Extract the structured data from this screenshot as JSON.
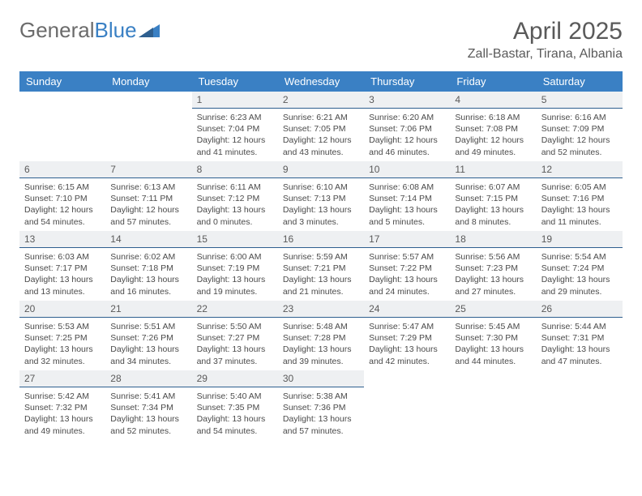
{
  "logo": {
    "text1": "General",
    "text2": "Blue"
  },
  "title": "April 2025",
  "location": "Zall-Bastar, Tirana, Albania",
  "header_bg": "#3a80c4",
  "daynum_bg": "#eef0f2",
  "border_color": "#2e5f8f",
  "days": [
    "Sunday",
    "Monday",
    "Tuesday",
    "Wednesday",
    "Thursday",
    "Friday",
    "Saturday"
  ],
  "weeks": [
    [
      {
        "n": "",
        "lines": []
      },
      {
        "n": "",
        "lines": []
      },
      {
        "n": "1",
        "lines": [
          "Sunrise: 6:23 AM",
          "Sunset: 7:04 PM",
          "Daylight: 12 hours",
          "and 41 minutes."
        ]
      },
      {
        "n": "2",
        "lines": [
          "Sunrise: 6:21 AM",
          "Sunset: 7:05 PM",
          "Daylight: 12 hours",
          "and 43 minutes."
        ]
      },
      {
        "n": "3",
        "lines": [
          "Sunrise: 6:20 AM",
          "Sunset: 7:06 PM",
          "Daylight: 12 hours",
          "and 46 minutes."
        ]
      },
      {
        "n": "4",
        "lines": [
          "Sunrise: 6:18 AM",
          "Sunset: 7:08 PM",
          "Daylight: 12 hours",
          "and 49 minutes."
        ]
      },
      {
        "n": "5",
        "lines": [
          "Sunrise: 6:16 AM",
          "Sunset: 7:09 PM",
          "Daylight: 12 hours",
          "and 52 minutes."
        ]
      }
    ],
    [
      {
        "n": "6",
        "lines": [
          "Sunrise: 6:15 AM",
          "Sunset: 7:10 PM",
          "Daylight: 12 hours",
          "and 54 minutes."
        ]
      },
      {
        "n": "7",
        "lines": [
          "Sunrise: 6:13 AM",
          "Sunset: 7:11 PM",
          "Daylight: 12 hours",
          "and 57 minutes."
        ]
      },
      {
        "n": "8",
        "lines": [
          "Sunrise: 6:11 AM",
          "Sunset: 7:12 PM",
          "Daylight: 13 hours",
          "and 0 minutes."
        ]
      },
      {
        "n": "9",
        "lines": [
          "Sunrise: 6:10 AM",
          "Sunset: 7:13 PM",
          "Daylight: 13 hours",
          "and 3 minutes."
        ]
      },
      {
        "n": "10",
        "lines": [
          "Sunrise: 6:08 AM",
          "Sunset: 7:14 PM",
          "Daylight: 13 hours",
          "and 5 minutes."
        ]
      },
      {
        "n": "11",
        "lines": [
          "Sunrise: 6:07 AM",
          "Sunset: 7:15 PM",
          "Daylight: 13 hours",
          "and 8 minutes."
        ]
      },
      {
        "n": "12",
        "lines": [
          "Sunrise: 6:05 AM",
          "Sunset: 7:16 PM",
          "Daylight: 13 hours",
          "and 11 minutes."
        ]
      }
    ],
    [
      {
        "n": "13",
        "lines": [
          "Sunrise: 6:03 AM",
          "Sunset: 7:17 PM",
          "Daylight: 13 hours",
          "and 13 minutes."
        ]
      },
      {
        "n": "14",
        "lines": [
          "Sunrise: 6:02 AM",
          "Sunset: 7:18 PM",
          "Daylight: 13 hours",
          "and 16 minutes."
        ]
      },
      {
        "n": "15",
        "lines": [
          "Sunrise: 6:00 AM",
          "Sunset: 7:19 PM",
          "Daylight: 13 hours",
          "and 19 minutes."
        ]
      },
      {
        "n": "16",
        "lines": [
          "Sunrise: 5:59 AM",
          "Sunset: 7:21 PM",
          "Daylight: 13 hours",
          "and 21 minutes."
        ]
      },
      {
        "n": "17",
        "lines": [
          "Sunrise: 5:57 AM",
          "Sunset: 7:22 PM",
          "Daylight: 13 hours",
          "and 24 minutes."
        ]
      },
      {
        "n": "18",
        "lines": [
          "Sunrise: 5:56 AM",
          "Sunset: 7:23 PM",
          "Daylight: 13 hours",
          "and 27 minutes."
        ]
      },
      {
        "n": "19",
        "lines": [
          "Sunrise: 5:54 AM",
          "Sunset: 7:24 PM",
          "Daylight: 13 hours",
          "and 29 minutes."
        ]
      }
    ],
    [
      {
        "n": "20",
        "lines": [
          "Sunrise: 5:53 AM",
          "Sunset: 7:25 PM",
          "Daylight: 13 hours",
          "and 32 minutes."
        ]
      },
      {
        "n": "21",
        "lines": [
          "Sunrise: 5:51 AM",
          "Sunset: 7:26 PM",
          "Daylight: 13 hours",
          "and 34 minutes."
        ]
      },
      {
        "n": "22",
        "lines": [
          "Sunrise: 5:50 AM",
          "Sunset: 7:27 PM",
          "Daylight: 13 hours",
          "and 37 minutes."
        ]
      },
      {
        "n": "23",
        "lines": [
          "Sunrise: 5:48 AM",
          "Sunset: 7:28 PM",
          "Daylight: 13 hours",
          "and 39 minutes."
        ]
      },
      {
        "n": "24",
        "lines": [
          "Sunrise: 5:47 AM",
          "Sunset: 7:29 PM",
          "Daylight: 13 hours",
          "and 42 minutes."
        ]
      },
      {
        "n": "25",
        "lines": [
          "Sunrise: 5:45 AM",
          "Sunset: 7:30 PM",
          "Daylight: 13 hours",
          "and 44 minutes."
        ]
      },
      {
        "n": "26",
        "lines": [
          "Sunrise: 5:44 AM",
          "Sunset: 7:31 PM",
          "Daylight: 13 hours",
          "and 47 minutes."
        ]
      }
    ],
    [
      {
        "n": "27",
        "lines": [
          "Sunrise: 5:42 AM",
          "Sunset: 7:32 PM",
          "Daylight: 13 hours",
          "and 49 minutes."
        ]
      },
      {
        "n": "28",
        "lines": [
          "Sunrise: 5:41 AM",
          "Sunset: 7:34 PM",
          "Daylight: 13 hours",
          "and 52 minutes."
        ]
      },
      {
        "n": "29",
        "lines": [
          "Sunrise: 5:40 AM",
          "Sunset: 7:35 PM",
          "Daylight: 13 hours",
          "and 54 minutes."
        ]
      },
      {
        "n": "30",
        "lines": [
          "Sunrise: 5:38 AM",
          "Sunset: 7:36 PM",
          "Daylight: 13 hours",
          "and 57 minutes."
        ]
      },
      {
        "n": "",
        "lines": []
      },
      {
        "n": "",
        "lines": []
      },
      {
        "n": "",
        "lines": []
      }
    ]
  ]
}
